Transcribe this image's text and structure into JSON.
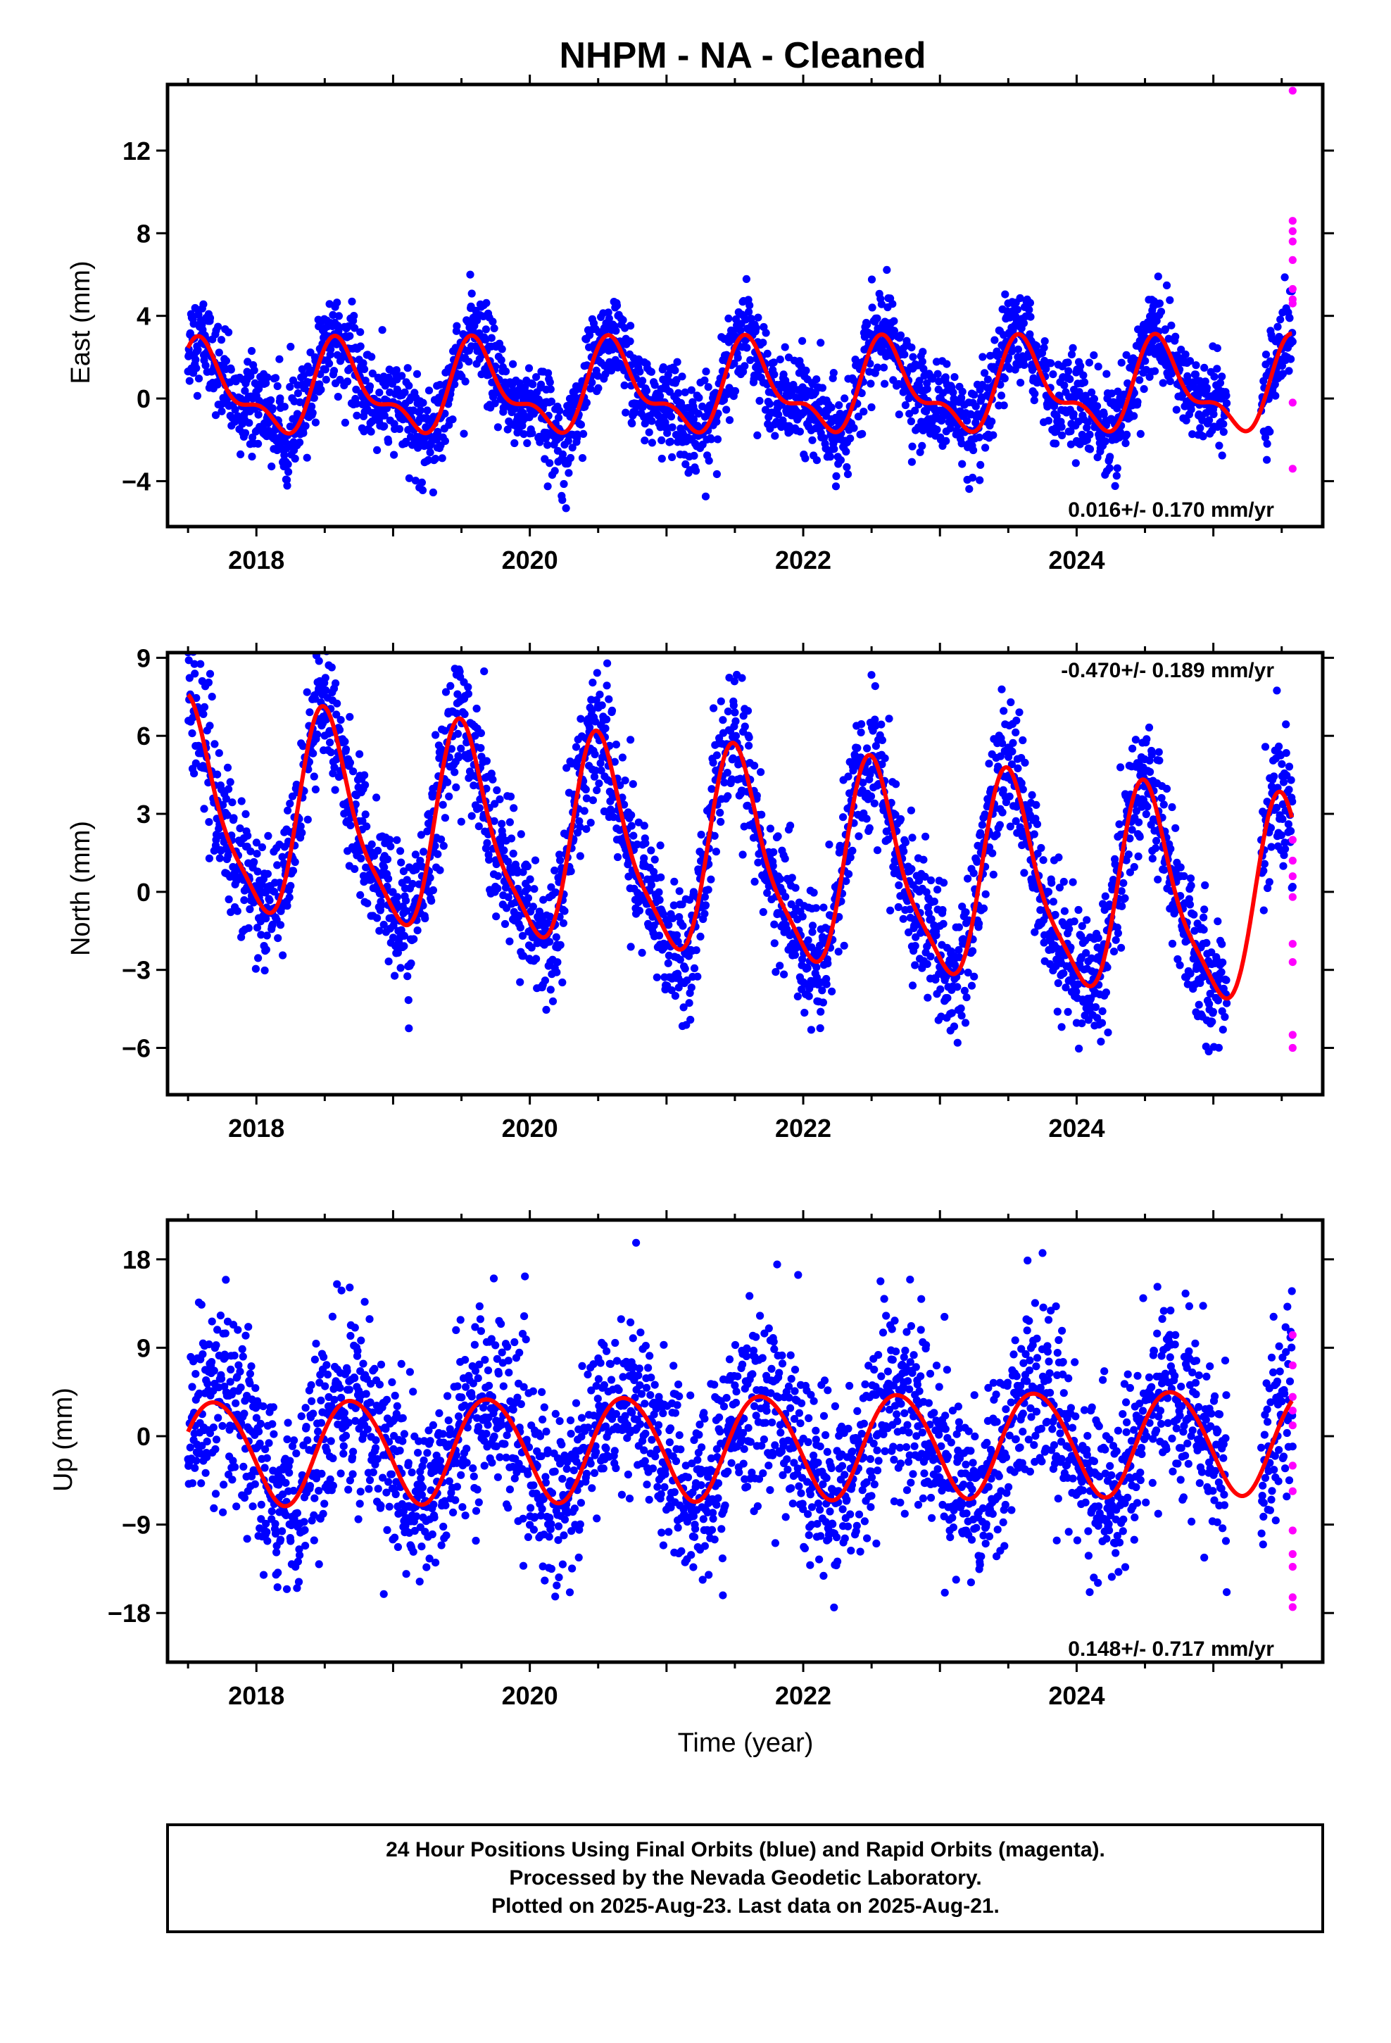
{
  "title": "NHPM  - NA - Cleaned",
  "xlabel": "Time (year)",
  "footer": {
    "line1": "24 Hour Positions Using Final Orbits (blue) and Rapid Orbits (magenta).",
    "line2": "Processed by the Nevada Geodetic Laboratory.",
    "line3": "Plotted on 2025-Aug-23. Last data on 2025-Aug-21."
  },
  "colors": {
    "final_orbits": "#0000ff",
    "rapid_orbits": "#ff00ff",
    "model_fit": "#ff0000"
  },
  "chart_data": [
    {
      "type": "scatter",
      "ylabel": "East (mm)",
      "xlim": [
        2017.35,
        2025.8
      ],
      "ylim": [
        -6.2,
        15.2
      ],
      "xticks": [
        2018,
        2020,
        2022,
        2024
      ],
      "yticks": [
        -4,
        0,
        4,
        8,
        12
      ],
      "rate_label": "0.016+/- 0.170 mm/yr",
      "rate_position": "bottom-right",
      "model": {
        "mean": 0.4,
        "trend_mm_per_yr": 0.016,
        "t0": 2021.5,
        "annual_amp": 1.9,
        "annual_peak": 2017.62,
        "semiannual_amp": 0.9,
        "semiannual_peak": 2017.55
      },
      "scatter_sd": 1.1,
      "final_range": [
        2017.5,
        2025.1
      ],
      "final_range_2": [
        2025.35,
        2025.58
      ],
      "rapid_points": [
        {
          "x": 2025.58,
          "y": 14.9
        },
        {
          "x": 2025.58,
          "y": 8.6
        },
        {
          "x": 2025.58,
          "y": 8.1
        },
        {
          "x": 2025.58,
          "y": 7.6
        },
        {
          "x": 2025.58,
          "y": 6.7
        },
        {
          "x": 2025.58,
          "y": 5.3
        },
        {
          "x": 2025.58,
          "y": 4.8
        },
        {
          "x": 2025.58,
          "y": 4.6
        },
        {
          "x": 2025.58,
          "y": -0.2
        },
        {
          "x": 2025.58,
          "y": -3.4
        }
      ]
    },
    {
      "type": "scatter",
      "ylabel": "North (mm)",
      "xlim": [
        2017.35,
        2025.8
      ],
      "ylim": [
        -7.8,
        9.2
      ],
      "xticks": [
        2018,
        2020,
        2022,
        2024
      ],
      "yticks": [
        -6,
        -3,
        0,
        3,
        6,
        9
      ],
      "rate_label": "-0.470+/- 0.189 mm/yr",
      "rate_position": "top-right",
      "model": {
        "mean": 1.2,
        "trend_mm_per_yr": -0.47,
        "t0": 2021.5,
        "annual_amp": 3.8,
        "annual_peak": 2017.52,
        "semiannual_amp": 0.9,
        "semiannual_peak": 2017.45
      },
      "scatter_sd": 1.3,
      "final_range": [
        2017.5,
        2025.1
      ],
      "final_range_2": [
        2025.35,
        2025.58
      ],
      "rapid_points": [
        {
          "x": 2025.58,
          "y": 2.0
        },
        {
          "x": 2025.58,
          "y": 1.2
        },
        {
          "x": 2025.58,
          "y": 0.6
        },
        {
          "x": 2025.58,
          "y": -0.2
        },
        {
          "x": 2025.58,
          "y": -2.0
        },
        {
          "x": 2025.58,
          "y": -2.7
        },
        {
          "x": 2025.58,
          "y": -5.5
        },
        {
          "x": 2025.58,
          "y": -6.0
        }
      ]
    },
    {
      "type": "scatter",
      "ylabel": "Up (mm)",
      "xlim": [
        2017.35,
        2025.8
      ],
      "ylim": [
        -23,
        22
      ],
      "xticks": [
        2018,
        2020,
        2022,
        2024
      ],
      "yticks": [
        -18,
        -9,
        0,
        9,
        18
      ],
      "rate_label": "0.148+/- 0.717 mm/yr",
      "rate_position": "bottom-right",
      "model": {
        "mean": -1.0,
        "trend_mm_per_yr": 0.148,
        "t0": 2021.5,
        "annual_amp": 5.3,
        "annual_peak": 2017.7,
        "semiannual_amp": 0.4,
        "semiannual_peak": 2017.5
      },
      "scatter_sd": 4.6,
      "final_range": [
        2017.5,
        2025.1
      ],
      "final_range_2": [
        2025.35,
        2025.58
      ],
      "rapid_points": [
        {
          "x": 2025.58,
          "y": 10.3
        },
        {
          "x": 2025.58,
          "y": 7.2
        },
        {
          "x": 2025.58,
          "y": 4.0
        },
        {
          "x": 2025.58,
          "y": 2.6
        },
        {
          "x": 2025.58,
          "y": 1.1
        },
        {
          "x": 2025.58,
          "y": -3.0
        },
        {
          "x": 2025.58,
          "y": -5.6
        },
        {
          "x": 2025.58,
          "y": -9.6
        },
        {
          "x": 2025.58,
          "y": -12.0
        },
        {
          "x": 2025.58,
          "y": -13.3
        },
        {
          "x": 2025.58,
          "y": -16.4
        },
        {
          "x": 2025.58,
          "y": -17.4
        }
      ]
    }
  ]
}
